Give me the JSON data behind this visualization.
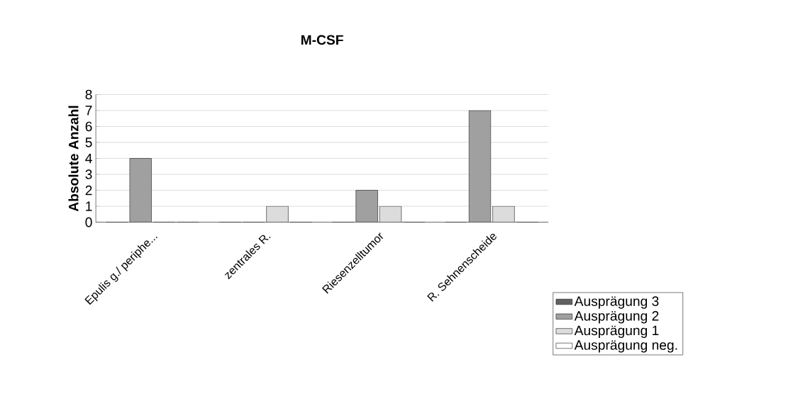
{
  "chart_data": {
    "type": "bar",
    "title": "M-CSF",
    "ylabel": "Absolute Anzahl",
    "categories": [
      "Epulis g./ periphe...",
      "zentrales R.",
      "Riesenzelltumor",
      "R. Sehnenscheide"
    ],
    "series": [
      {
        "name": "Ausprägung 3",
        "color": "#606060",
        "values": [
          0,
          0,
          0,
          0
        ]
      },
      {
        "name": "Ausprägung 2",
        "color": "#a0a0a0",
        "values": [
          4,
          0,
          2,
          7
        ]
      },
      {
        "name": "Ausprägung 1",
        "color": "#dcdcdc",
        "values": [
          0,
          1,
          1,
          1
        ]
      },
      {
        "name": "Ausprägung neg.",
        "color": "#ffffff",
        "values": [
          0,
          0,
          0,
          0
        ]
      }
    ],
    "ylim": [
      0,
      8
    ],
    "yticks": [
      0,
      1,
      2,
      3,
      4,
      5,
      6,
      7,
      8
    ],
    "grid": "y",
    "legend": "right"
  }
}
